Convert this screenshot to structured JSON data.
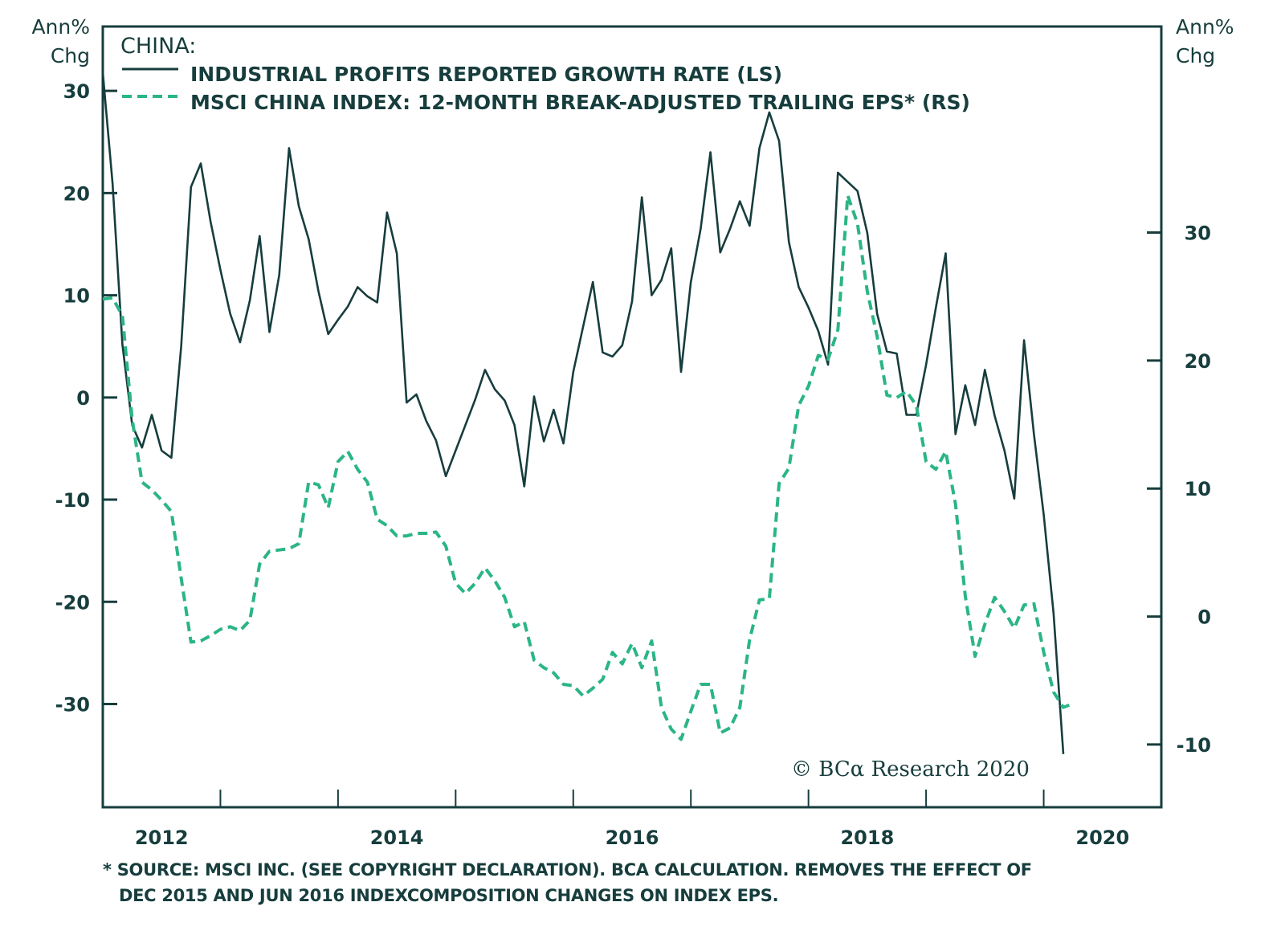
{
  "chart_data": {
    "type": "line",
    "title": "CHINA:",
    "left_axis_label": [
      "Ann%",
      "Chg"
    ],
    "right_axis_label": [
      "Ann%",
      "Chg"
    ],
    "x_range": [
      2012.0,
      2021.0
    ],
    "x_ticks": [
      2013,
      2014,
      2015,
      2016,
      2017,
      2018,
      2019,
      2020
    ],
    "x_tick_labels": [
      "2012",
      "2014",
      "2016",
      "2018",
      "2020"
    ],
    "x_tick_label_positions": [
      2012.5,
      2014.5,
      2016.5,
      2018.5,
      2020.5
    ],
    "left_ylim": [
      -40.1,
      36.3
    ],
    "left_yticks": [
      30,
      20,
      10,
      0,
      -10,
      -20,
      -30
    ],
    "right_ylim": [
      -14.9,
      46.1
    ],
    "right_yticks": [
      30,
      20,
      10,
      0,
      -10
    ],
    "grid": false,
    "legend_position": "top-left",
    "series": [
      {
        "name": "INDUSTRIAL PROFITS REPORTED GROWTH RATE (LS)",
        "axis": "left",
        "style": "solid",
        "color": "#173d3d",
        "x_start": 2012.0,
        "x_step_months": 1,
        "values": [
          31.8,
          20.9,
          5.2,
          -2.7,
          -4.9,
          -1.7,
          -5.2,
          -5.9,
          5.0,
          20.6,
          22.9,
          17.2,
          12.5,
          8.2,
          5.4,
          9.5,
          15.8,
          6.4,
          12.0,
          24.4,
          18.7,
          15.5,
          10.4,
          6.2,
          7.6,
          8.9,
          10.8,
          9.9,
          9.3,
          18.1,
          14.1,
          -0.5,
          0.3,
          -2.3,
          -4.2,
          -7.7,
          -5.2,
          -2.7,
          -0.2,
          2.7,
          0.8,
          -0.3,
          -2.7,
          -8.7,
          0.1,
          -4.3,
          -1.2,
          -4.5,
          2.5,
          6.9,
          11.3,
          4.4,
          4.0,
          5.1,
          9.4,
          19.6,
          10.0,
          11.5,
          14.6,
          2.5,
          11.3,
          16.5,
          24.0,
          14.2,
          16.5,
          19.2,
          16.8,
          24.4,
          27.9,
          25.1,
          15.2,
          10.8,
          8.8,
          6.5,
          3.2,
          22.0,
          21.1,
          20.2,
          16.1,
          8.2,
          4.5,
          4.3,
          -1.7,
          -1.7,
          3.2,
          8.8,
          14.1,
          -3.6,
          1.2,
          -2.7,
          2.7,
          -1.8,
          -5.2,
          -9.9,
          5.6,
          -3.6,
          -11.5,
          -21.1,
          -34.9
        ]
      },
      {
        "name": "MSCI CHINA INDEX: 12-MONTH BREAK-ADJUSTED TRAILING EPS* (RS)",
        "axis": "right",
        "style": "dashed",
        "color": "#2bb585",
        "x_start": 2012.0,
        "x_step_months": 1,
        "values": [
          24.8,
          24.9,
          23.5,
          15.4,
          10.5,
          9.9,
          9.1,
          8.2,
          3.0,
          -2.0,
          -1.9,
          -1.5,
          -1.0,
          -0.8,
          -1.1,
          -0.3,
          4.1,
          5.1,
          5.2,
          5.3,
          5.7,
          10.5,
          10.3,
          8.5,
          12.1,
          12.9,
          11.5,
          10.5,
          7.6,
          7.1,
          6.3,
          6.3,
          6.5,
          6.5,
          6.6,
          5.5,
          2.6,
          1.8,
          2.6,
          3.8,
          2.8,
          1.5,
          -0.8,
          -0.4,
          -3.4,
          -4.0,
          -4.4,
          -5.3,
          -5.4,
          -6.2,
          -5.6,
          -4.9,
          -2.8,
          -3.7,
          -2.1,
          -4.0,
          -1.9,
          -7.1,
          -8.8,
          -9.6,
          -7.4,
          -5.3,
          -5.3,
          -9.1,
          -8.7,
          -7.1,
          -1.8,
          1.3,
          1.4,
          10.4,
          11.6,
          16.5,
          18.0,
          20.4,
          20.1,
          22.4,
          32.9,
          30.7,
          25.4,
          21.9,
          17.3,
          17.1,
          17.6,
          16.5,
          12.1,
          11.5,
          12.9,
          8.8,
          1.6,
          -3.1,
          -0.6,
          1.5,
          0.4,
          -0.9,
          0.9,
          1.0,
          -2.8,
          -5.9,
          -7.1,
          -6.8
        ]
      }
    ],
    "annotation": "© BCα Research 2020",
    "footnote": [
      "* SOURCE: MSCI INC. (SEE COPYRIGHT DECLARATION). BCA CALCULATION. REMOVES THE EFFECT OF",
      "DEC 2015 AND JUN 2016 INDEXCOMPOSITION CHANGES ON INDEX EPS."
    ]
  }
}
